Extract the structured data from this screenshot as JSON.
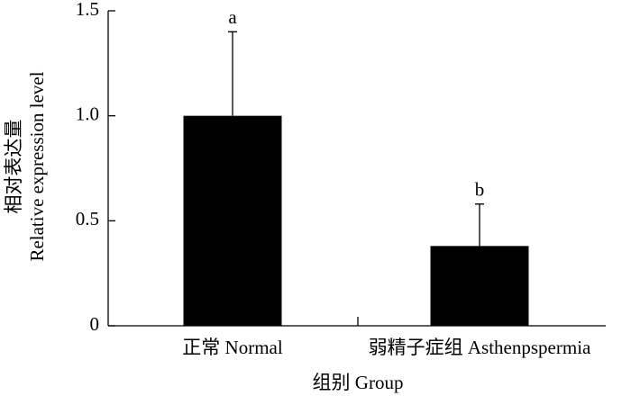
{
  "chart_data": {
    "type": "bar",
    "y_label_lines": [
      "相对表达量",
      "Relative expression level"
    ],
    "x_label": "组别 Group",
    "categories": [
      "正常 Normal",
      "弱精子症组 Asthenpspermia"
    ],
    "values": [
      1.0,
      0.38
    ],
    "errors": [
      0.4,
      0.2
    ],
    "annotations": [
      "a",
      "b"
    ],
    "color": "#000000",
    "ylim": [
      0,
      1.5
    ],
    "yticks": [
      0,
      0.5,
      {
        "value": 1.0,
        "label": "1.0"
      },
      {
        "value": 1.5,
        "label": "1.5"
      }
    ]
  }
}
